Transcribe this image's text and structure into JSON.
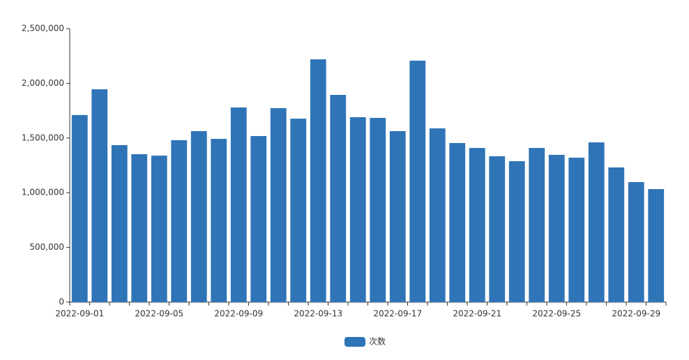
{
  "chart_data": {
    "type": "bar",
    "categories": [
      "2022-09-01",
      null,
      null,
      null,
      "2022-09-05",
      null,
      null,
      null,
      "2022-09-09",
      null,
      null,
      null,
      "2022-09-13",
      null,
      null,
      null,
      "2022-09-17",
      null,
      null,
      null,
      "2022-09-21",
      null,
      null,
      null,
      "2022-09-25",
      null,
      null,
      null,
      "2022-09-29",
      null
    ],
    "series": [
      {
        "name": "次数",
        "color": "#2f74b7",
        "values": [
          1710000,
          1945000,
          1435000,
          1352000,
          1339000,
          1480000,
          1563000,
          1492000,
          1779000,
          1518000,
          1773000,
          1677000,
          2219000,
          1894000,
          1690000,
          1684000,
          1563000,
          2207000,
          1588000,
          1454000,
          1409000,
          1333000,
          1288000,
          1409000,
          1346000,
          1320000,
          1460000,
          1231000,
          1097000,
          1033000
        ]
      }
    ],
    "ylim": [
      0,
      2500000
    ],
    "yticks": [
      0,
      {
        "value": 500000,
        "label": "500,000"
      },
      {
        "value": 1000000,
        "label": "1,000,000"
      },
      {
        "value": 1500000,
        "label": "1,500,000"
      },
      {
        "value": 2000000,
        "label": "2,000,000"
      },
      {
        "value": 2500000,
        "label": "2,500,000"
      }
    ],
    "legend": "bottom"
  }
}
